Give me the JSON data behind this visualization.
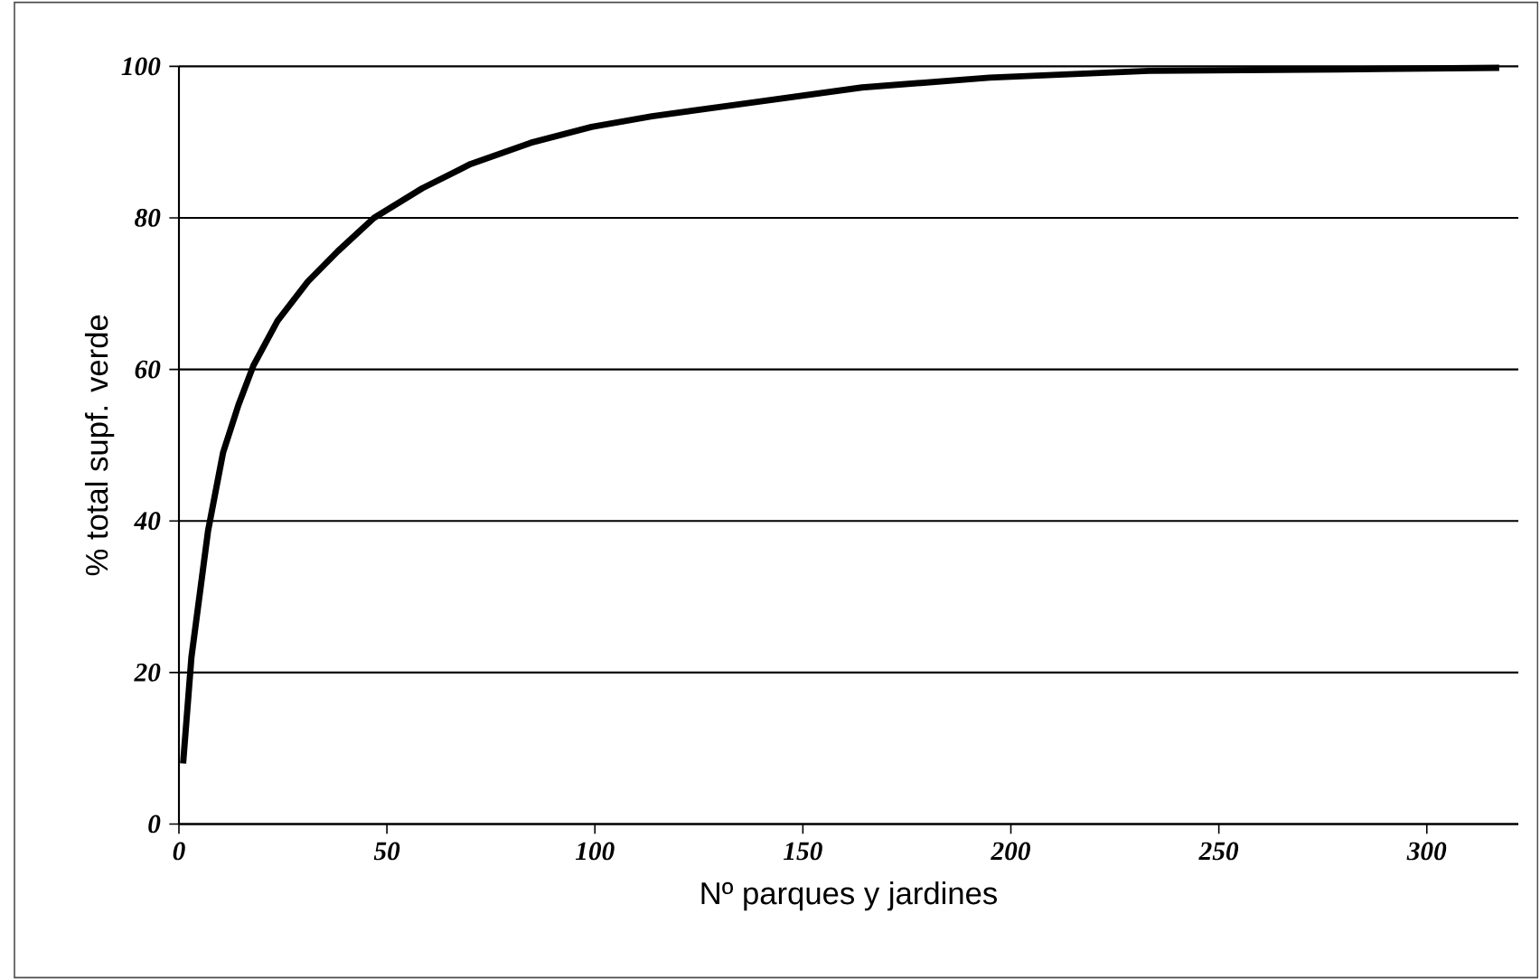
{
  "chart_data": {
    "type": "line",
    "xlabel": "Nº parques y jardines",
    "ylabel": "% total supf. verde",
    "x": [
      1,
      3,
      7,
      10.6,
      14.3,
      17.9,
      23.7,
      31,
      38.2,
      46.9,
      58.5,
      70.1,
      84.6,
      99.2,
      113.7,
      133.5,
      164.2,
      194.9,
      233.2,
      279,
      317.4
    ],
    "series": [
      {
        "color": "#000000",
        "values": [
          8,
          22,
          38.7,
          49,
          55.3,
          60.5,
          66.4,
          71.6,
          75.6,
          80,
          83.9,
          87.1,
          89.9,
          92,
          93.4,
          94.9,
          97.2,
          98.5,
          99.4,
          99.6,
          99.8
        ]
      }
    ],
    "xlim": [
      0,
      322
    ],
    "ylim": [
      0,
      100
    ],
    "xticks": [
      0,
      50,
      100,
      150,
      200,
      250,
      300
    ],
    "yticks": [
      0,
      20,
      40,
      60,
      80,
      100
    ],
    "grid": "y",
    "marker": "none",
    "line_style": "solid"
  }
}
